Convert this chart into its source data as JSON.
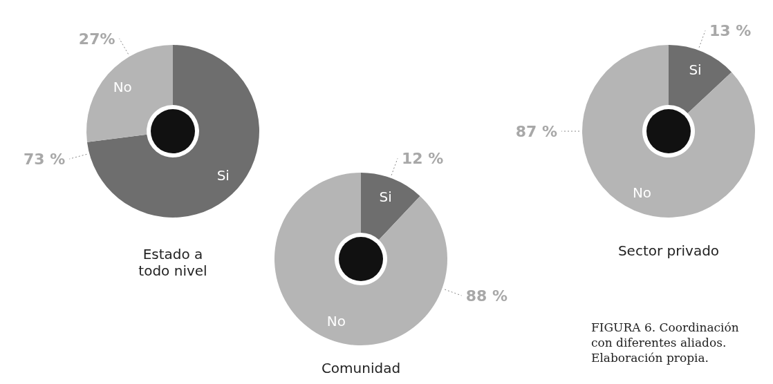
{
  "chart_data": [
    {
      "type": "donut",
      "title": "Estado a todo nivel",
      "categories": [
        "Si",
        "No"
      ],
      "values": [
        73,
        27
      ],
      "colors": [
        "#6e6e6e",
        "#b5b5b5"
      ],
      "value_labels": [
        "73 %",
        "27%"
      ]
    },
    {
      "type": "donut",
      "title": "Comunidad",
      "categories": [
        "Si",
        "No"
      ],
      "values": [
        12,
        88
      ],
      "colors": [
        "#6e6e6e",
        "#b5b5b5"
      ],
      "value_labels": [
        "12 %",
        "88 %"
      ]
    },
    {
      "type": "donut",
      "title": "Sector privado",
      "categories": [
        "Si",
        "No"
      ],
      "values": [
        13,
        87
      ],
      "colors": [
        "#6e6e6e",
        "#b5b5b5"
      ],
      "value_labels": [
        "13 %",
        "87 %"
      ],
      "annotations": [
        "FIGURA 6. Coordinación con diferentes aliados. Elaboración propia."
      ]
    }
  ]
}
